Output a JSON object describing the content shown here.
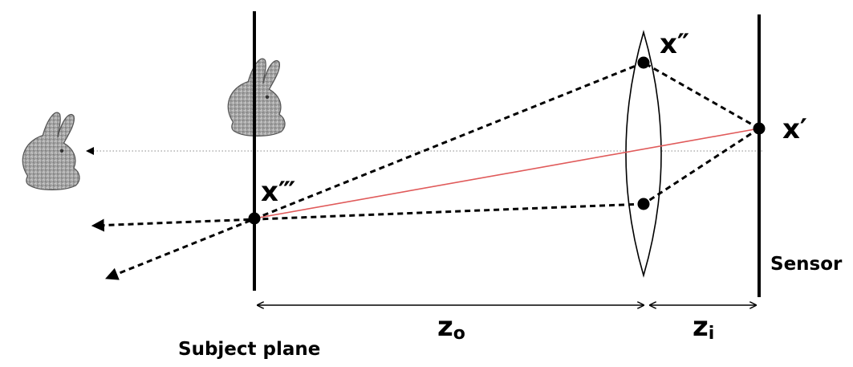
{
  "labels": {
    "x_double_prime": "x″",
    "x_prime": "x′",
    "x_triple_prime": "x‴",
    "sensor": "Sensor",
    "subject_plane": "Subject plane",
    "z_o_main": "z",
    "z_o_sub": "o",
    "z_i_main": "z",
    "z_i_sub": "i"
  },
  "icons": [
    "bunny-icon"
  ],
  "colors": {
    "ray_chief": "#e05a5a",
    "line": "#000000",
    "guide": "#888888"
  }
}
